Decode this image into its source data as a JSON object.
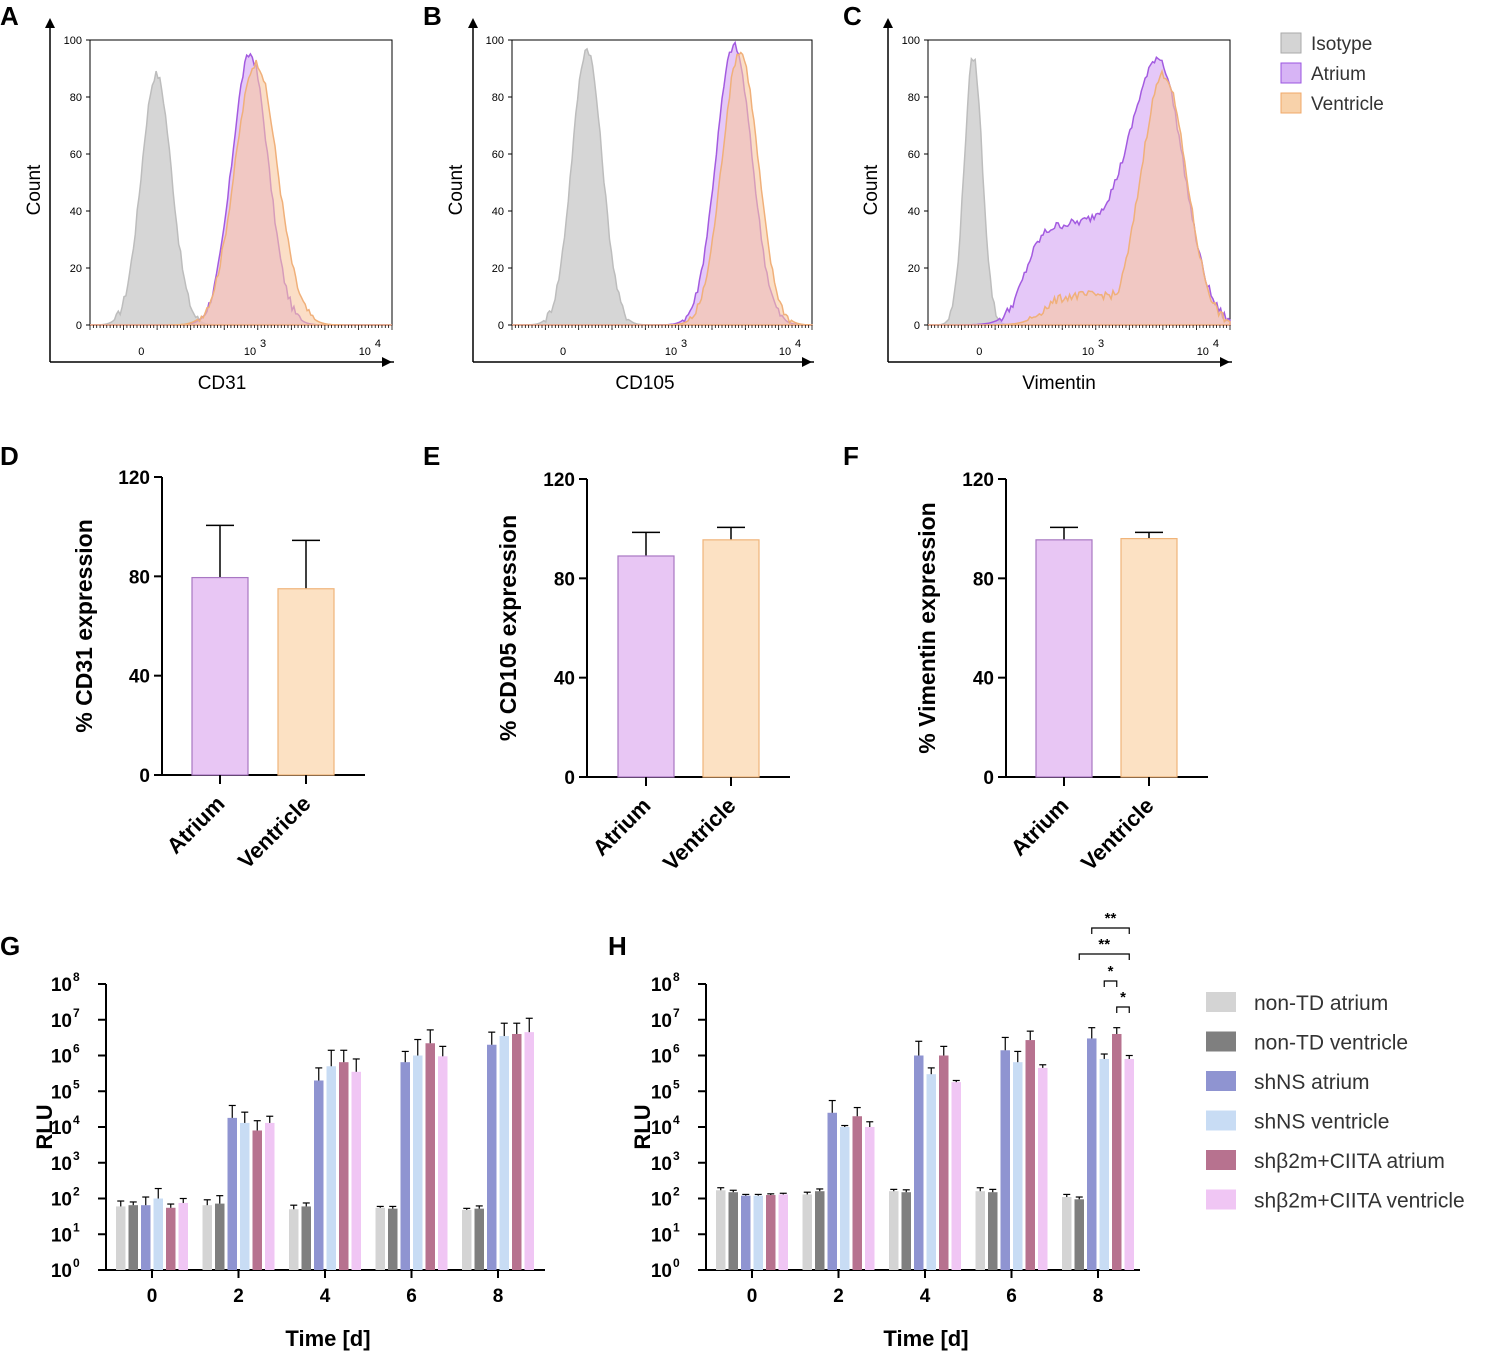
{
  "panels": {
    "A": "A",
    "B": "B",
    "C": "C",
    "D": "D",
    "E": "E",
    "F": "F",
    "G": "G",
    "H": "H"
  },
  "colors": {
    "isotype": "#c8c8c8",
    "atrium": "#d7b4f5",
    "ventricle": "#f8d2aa",
    "atrium_bar": "#e8c6f4",
    "ventricle_bar": "#fce1c3",
    "non_td_atrium": "#d4d4d4",
    "non_td_ventricle": "#7f7f7f",
    "shns_atrium": "#8f94d1",
    "shns_ventricle": "#c8dcf4",
    "shb2m_atrium": "#b7728f",
    "shb2m_ventricle": "#f0c6f4"
  },
  "flow_legend": {
    "items": [
      {
        "label": "Isotype",
        "color": "#d4d4d4",
        "stroke": "#aaaaaa"
      },
      {
        "label": "Atrium",
        "color": "#d7b4f5",
        "stroke": "#9b55e0"
      },
      {
        "label": "Ventricle",
        "color": "#f8d2aa",
        "stroke": "#f0a868"
      }
    ]
  },
  "chart_data": [
    {
      "panel": "A",
      "type": "area",
      "xlabel": "CD31",
      "ylabel": "Count",
      "ylim": [
        0,
        100
      ],
      "yticks": [
        "0",
        "20",
        "40",
        "60",
        "80",
        "100"
      ],
      "xticks": [
        "0",
        "10",
        "10"
      ],
      "xtick_exps": [
        "",
        "3",
        "4"
      ],
      "x_scale": "biexponential",
      "series": [
        {
          "name": "Isotype",
          "peak_position": 0.22,
          "peak_count": 88,
          "width": 0.05
        },
        {
          "name": "Atrium",
          "peak_position": 0.53,
          "peak_count": 95,
          "width": 0.06
        },
        {
          "name": "Ventricle",
          "peak_position": 0.55,
          "peak_count": 92,
          "width": 0.07
        }
      ]
    },
    {
      "panel": "B",
      "type": "area",
      "xlabel": "CD105",
      "ylabel": "Count",
      "ylim": [
        0,
        100
      ],
      "yticks": [
        "0",
        "20",
        "40",
        "60",
        "80",
        "100"
      ],
      "xticks": [
        "0",
        "10",
        "10"
      ],
      "xtick_exps": [
        "",
        "3",
        "4"
      ],
      "x_scale": "biexponential",
      "series": [
        {
          "name": "Isotype",
          "peak_position": 0.25,
          "peak_count": 97,
          "width": 0.05
        },
        {
          "name": "Atrium",
          "peak_position": 0.74,
          "peak_count": 98,
          "width": 0.06
        },
        {
          "name": "Ventricle",
          "peak_position": 0.76,
          "peak_count": 96,
          "width": 0.06
        }
      ]
    },
    {
      "panel": "C",
      "type": "area",
      "xlabel": "Vimentin",
      "ylabel": "Count",
      "ylim": [
        0,
        100
      ],
      "yticks": [
        "0",
        "20",
        "40",
        "60",
        "80",
        "100"
      ],
      "xticks": [
        "0",
        "10",
        "10"
      ],
      "xtick_exps": [
        "",
        "3",
        "4"
      ],
      "x_scale": "biexponential",
      "series": [
        {
          "name": "Isotype",
          "peak_position": 0.15,
          "peak_count": 94,
          "width": 0.03
        },
        {
          "name": "Atrium",
          "peak_position": 0.76,
          "peak_count": 94,
          "width": 0.18
        },
        {
          "name": "Ventricle",
          "peak_position": 0.78,
          "peak_count": 88,
          "width": 0.1
        }
      ]
    },
    {
      "panel": "D",
      "type": "bar",
      "ylabel": "% CD31 expression",
      "categories": [
        "Atrium",
        "Ventricle"
      ],
      "values": [
        79.5,
        75
      ],
      "errors": [
        21,
        19.5
      ],
      "ylim": [
        0,
        120
      ],
      "yticks": [
        "0",
        "40",
        "80",
        "120"
      ]
    },
    {
      "panel": "E",
      "type": "bar",
      "ylabel": "% CD105 expression",
      "categories": [
        "Atrium",
        "Ventricle"
      ],
      "values": [
        89,
        95.5
      ],
      "errors": [
        9.5,
        5
      ],
      "ylim": [
        0,
        120
      ],
      "yticks": [
        "0",
        "40",
        "80",
        "120"
      ]
    },
    {
      "panel": "F",
      "type": "bar",
      "ylabel": "% Vimentin expression",
      "categories": [
        "Atrium",
        "Ventricle"
      ],
      "values": [
        95.5,
        96
      ],
      "errors": [
        5,
        2.5
      ],
      "ylim": [
        0,
        120
      ],
      "yticks": [
        "0",
        "40",
        "80",
        "120"
      ]
    },
    {
      "panel": "G",
      "type": "bar",
      "ylabel": "RLU",
      "xlabel": "Time [d]",
      "y_scale": "log10",
      "ylim_log10": [
        0,
        8
      ],
      "ytick_base": "10",
      "ytick_exps": [
        "0",
        "1",
        "2",
        "3",
        "4",
        "5",
        "6",
        "7",
        "8"
      ],
      "categories": [
        "0",
        "2",
        "4",
        "6",
        "8"
      ],
      "series": [
        {
          "name": "non-TD atrium",
          "values": [
            60,
            65,
            50,
            55,
            48
          ],
          "err_upper": [
            85,
            92,
            65,
            60,
            53
          ]
        },
        {
          "name": "non-TD ventricle",
          "values": [
            65,
            72,
            60,
            52,
            52
          ],
          "err_upper": [
            80,
            120,
            75,
            60,
            62
          ]
        },
        {
          "name": "shNS atrium",
          "values": [
            65,
            18000,
            200000,
            650000,
            2000000
          ],
          "err_upper": [
            110,
            40000,
            450000,
            1300000,
            4500000
          ]
        },
        {
          "name": "shNS ventricle",
          "values": [
            100,
            13000,
            500000,
            1000000,
            3500000
          ],
          "err_upper": [
            190,
            26000,
            1400000,
            2800000,
            8000000
          ]
        },
        {
          "name": "shβ2m+CIITA atrium",
          "values": [
            55,
            8000,
            650000,
            2200000,
            4000000
          ],
          "err_upper": [
            70,
            15000,
            1400000,
            5200000,
            8000000
          ]
        },
        {
          "name": "shβ2m+CIITA ventricle",
          "values": [
            75,
            13000,
            350000,
            950000,
            4500000
          ],
          "err_upper": [
            100,
            20000,
            800000,
            1800000,
            11000000
          ]
        }
      ]
    },
    {
      "panel": "H",
      "type": "bar",
      "ylabel": "RLU",
      "xlabel": "Time [d]",
      "y_scale": "log10",
      "ylim_log10": [
        0,
        8
      ],
      "ytick_base": "10",
      "ytick_exps": [
        "0",
        "1",
        "2",
        "3",
        "4",
        "5",
        "6",
        "7",
        "8"
      ],
      "categories": [
        "0",
        "2",
        "4",
        "6",
        "8"
      ],
      "series": [
        {
          "name": "non-TD atrium",
          "values": [
            170,
            130,
            160,
            160,
            110
          ],
          "err_upper": [
            200,
            150,
            180,
            200,
            130
          ]
        },
        {
          "name": "non-TD ventricle",
          "values": [
            150,
            160,
            150,
            150,
            95
          ],
          "err_upper": [
            170,
            185,
            175,
            180,
            110
          ]
        },
        {
          "name": "shNS atrium",
          "values": [
            120,
            25000,
            1000000,
            1400000,
            3000000
          ],
          "err_upper": [
            130,
            55000,
            2500000,
            3200000,
            6000000
          ]
        },
        {
          "name": "shNS ventricle",
          "values": [
            120,
            10000,
            300000,
            650000,
            800000
          ],
          "err_upper": [
            130,
            11000,
            450000,
            1300000,
            1100000
          ]
        },
        {
          "name": "shβ2m+CIITA atrium",
          "values": [
            125,
            20000,
            1000000,
            2700000,
            4000000
          ],
          "err_upper": [
            135,
            35000,
            1800000,
            4800000,
            6000000
          ]
        },
        {
          "name": "shβ2m+CIITA ventricle",
          "values": [
            130,
            10000,
            180000,
            450000,
            800000
          ],
          "err_upper": [
            140,
            14000,
            200000,
            550000,
            1000000
          ]
        }
      ],
      "significance": [
        {
          "from_series": "shNS atrium",
          "to_series": "shβ2m+CIITA ventricle",
          "label": "**"
        },
        {
          "from_series": "non-TD ventricle",
          "to_series": "shβ2m+CIITA ventricle",
          "label": "**"
        },
        {
          "from_series": "shNS ventricle",
          "to_series": "shβ2m+CIITA atrium",
          "label": "*"
        },
        {
          "from_series": "shβ2m+CIITA atrium",
          "to_series": "shβ2m+CIITA ventricle",
          "label": "*"
        }
      ]
    }
  ],
  "rlu_legend": {
    "items": [
      {
        "label": "non-TD atrium",
        "color": "#d4d4d4"
      },
      {
        "label": "non-TD ventricle",
        "color": "#7f7f7f"
      },
      {
        "label": "shNS atrium",
        "color": "#8f94d1"
      },
      {
        "label": "shNS ventricle",
        "color": "#c8dcf4"
      },
      {
        "label": "shβ2m+CIITA atrium",
        "color": "#b7728f"
      },
      {
        "label": "shβ2m+CIITA ventricle",
        "color": "#f0c6f4"
      }
    ]
  }
}
